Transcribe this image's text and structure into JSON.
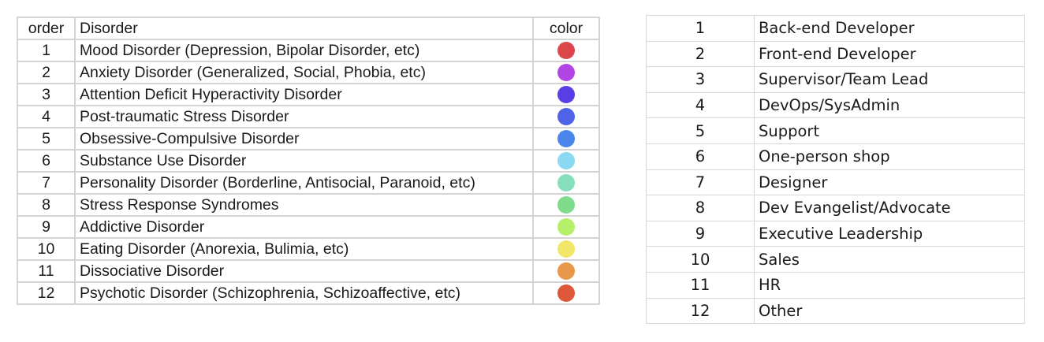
{
  "disorders_table": {
    "headers": {
      "order": "order",
      "disorder": "Disorder",
      "color": "color"
    },
    "rows": [
      {
        "order": "1",
        "name": "Mood Disorder (Depression, Bipolar Disorder, etc)",
        "color": "#d9474b"
      },
      {
        "order": "2",
        "name": "Anxiety Disorder (Generalized, Social, Phobia, etc)",
        "color": "#b145e3"
      },
      {
        "order": "3",
        "name": "Attention Deficit Hyperactivity Disorder",
        "color": "#5a3ee5"
      },
      {
        "order": "4",
        "name": "Post-traumatic Stress Disorder",
        "color": "#4e63e6"
      },
      {
        "order": "5",
        "name": "Obsessive-Compulsive Disorder",
        "color": "#4b86ec"
      },
      {
        "order": "6",
        "name": "Substance Use Disorder",
        "color": "#8ad8f2"
      },
      {
        "order": "7",
        "name": "Personality Disorder (Borderline, Antisocial, Paranoid, etc)",
        "color": "#88dfbd"
      },
      {
        "order": "8",
        "name": "Stress Response Syndromes",
        "color": "#7fdc8c"
      },
      {
        "order": "9",
        "name": "Addictive Disorder",
        "color": "#b6ef6a"
      },
      {
        "order": "10",
        "name": "Eating Disorder (Anorexia, Bulimia, etc)",
        "color": "#f2e66a"
      },
      {
        "order": "11",
        "name": "Dissociative Disorder",
        "color": "#e8974b"
      },
      {
        "order": "12",
        "name": "Psychotic Disorder (Schizophrenia, Schizoaffective, etc)",
        "color": "#dd5838"
      }
    ]
  },
  "roles_table": {
    "rows": [
      {
        "num": "1",
        "role": "Back-end Developer"
      },
      {
        "num": "2",
        "role": "Front-end Developer"
      },
      {
        "num": "3",
        "role": "Supervisor/Team Lead"
      },
      {
        "num": "4",
        "role": "DevOps/SysAdmin"
      },
      {
        "num": "5",
        "role": "Support"
      },
      {
        "num": "6",
        "role": "One-person shop"
      },
      {
        "num": "7",
        "role": "Designer"
      },
      {
        "num": "8",
        "role": "Dev Evangelist/Advocate"
      },
      {
        "num": "9",
        "role": "Executive Leadership"
      },
      {
        "num": "10",
        "role": "Sales"
      },
      {
        "num": "11",
        "role": "HR"
      },
      {
        "num": "12",
        "role": "Other"
      }
    ]
  }
}
